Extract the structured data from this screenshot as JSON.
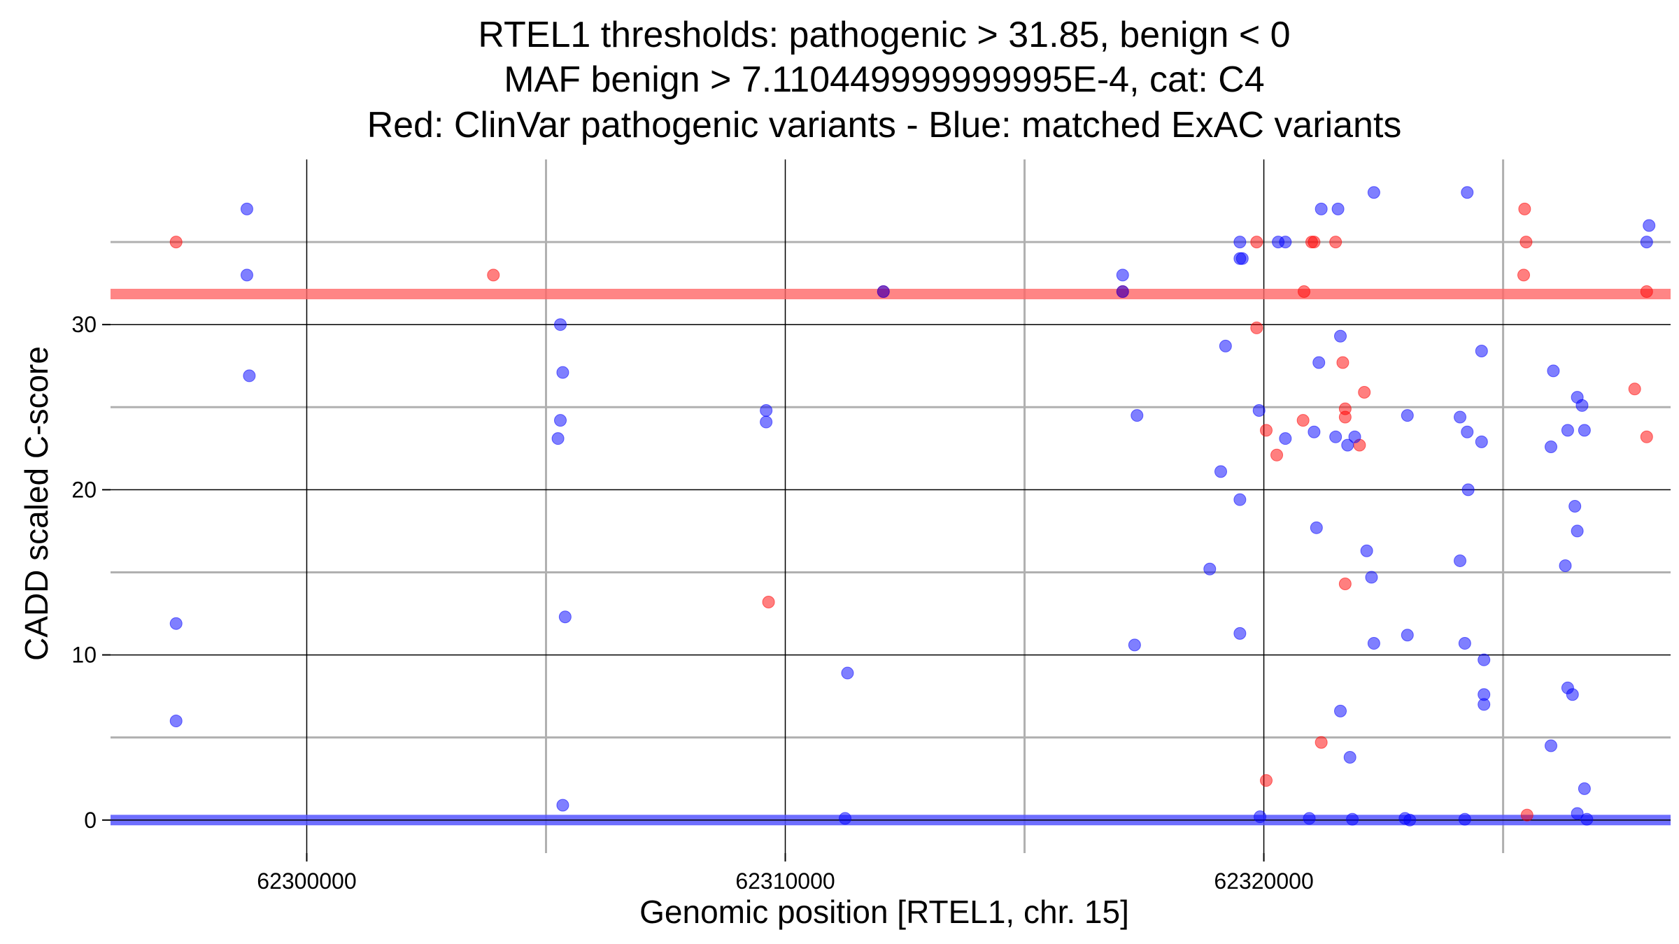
{
  "chart_data": {
    "type": "scatter",
    "title_lines": [
      "RTEL1 thresholds: pathogenic > 31.85, benign < 0",
      "MAF benign > 7.110449999999995E-4, cat: C4",
      "Red: ClinVar pathogenic variants - Blue: matched ExAC variants"
    ],
    "xlabel": "Genomic position [RTEL1, chr. 15]",
    "ylabel": "CADD scaled C-score",
    "xlim": [
      62295900,
      62328500
    ],
    "ylim": [
      -2,
      40
    ],
    "x_ticks": [
      62300000,
      62310000,
      62320000
    ],
    "x_tick_labels": [
      "62300000",
      "62310000",
      "62320000"
    ],
    "x_minor_gridlines": [
      62305000,
      62315000,
      62325000
    ],
    "y_ticks": [
      0,
      10,
      20,
      30
    ],
    "y_tick_labels": [
      "0",
      "10",
      "20",
      "30"
    ],
    "y_minor_gridlines": [
      5,
      15,
      25,
      35
    ],
    "grid": true,
    "thresholds": [
      {
        "name": "pathogenic",
        "value": 31.85,
        "color": "#ff6666"
      },
      {
        "name": "benign",
        "value": 0,
        "color": "#5555ff"
      }
    ],
    "colors": {
      "pathogenic": "#ff0000",
      "benign": "#0000ff"
    },
    "series": [
      {
        "name": "ClinVar pathogenic variants",
        "color": "#ff0000",
        "points": [
          [
            62297270,
            35
          ],
          [
            62303900,
            33
          ],
          [
            62309650,
            13.2
          ],
          [
            62312050,
            32
          ],
          [
            62317050,
            32
          ],
          [
            62319850,
            35
          ],
          [
            62319850,
            29.8
          ],
          [
            62320050,
            23.6
          ],
          [
            62320270,
            22.1
          ],
          [
            62320050,
            2.4
          ],
          [
            62320820,
            24.2
          ],
          [
            62320840,
            32
          ],
          [
            62321000,
            35
          ],
          [
            62321050,
            35
          ],
          [
            62321500,
            35
          ],
          [
            62321650,
            27.7
          ],
          [
            62322100,
            25.9
          ],
          [
            62321200,
            4.7
          ],
          [
            62321700,
            24.9
          ],
          [
            62321700,
            24.4
          ],
          [
            62321700,
            14.3
          ],
          [
            62322000,
            22.7
          ],
          [
            62325450,
            37
          ],
          [
            62325480,
            35
          ],
          [
            62325430,
            33
          ],
          [
            62325500,
            0.3
          ],
          [
            62328000,
            32
          ],
          [
            62327750,
            26.1
          ],
          [
            62328000,
            23.2
          ]
        ]
      },
      {
        "name": "matched ExAC variants",
        "color": "#0000ff",
        "points": [
          [
            62297270,
            11.9
          ],
          [
            62297270,
            6
          ],
          [
            62298750,
            37
          ],
          [
            62298750,
            33
          ],
          [
            62298800,
            26.9
          ],
          [
            62305300,
            30
          ],
          [
            62305350,
            27.1
          ],
          [
            62305300,
            24.2
          ],
          [
            62305250,
            23.1
          ],
          [
            62305400,
            12.3
          ],
          [
            62305350,
            0.9
          ],
          [
            62309600,
            24.8
          ],
          [
            62309600,
            24.1
          ],
          [
            62311300,
            8.9
          ],
          [
            62311250,
            0.1
          ],
          [
            62312050,
            32
          ],
          [
            62317050,
            33
          ],
          [
            62317050,
            32
          ],
          [
            62317350,
            24.5
          ],
          [
            62317300,
            10.6
          ],
          [
            62319500,
            35
          ],
          [
            62319500,
            34
          ],
          [
            62319550,
            34
          ],
          [
            62318870,
            15.2
          ],
          [
            62319200,
            28.7
          ],
          [
            62319100,
            21.1
          ],
          [
            62319500,
            19.4
          ],
          [
            62319500,
            11.3
          ],
          [
            62319900,
            24.8
          ],
          [
            62319920,
            0.2
          ],
          [
            62320300,
            35
          ],
          [
            62320450,
            35
          ],
          [
            62320450,
            23.1
          ],
          [
            62321050,
            23.5
          ],
          [
            62321100,
            17.7
          ],
          [
            62320950,
            0.1
          ],
          [
            62321200,
            37
          ],
          [
            62321550,
            37
          ],
          [
            62321150,
            27.7
          ],
          [
            62321600,
            29.3
          ],
          [
            62321500,
            23.2
          ],
          [
            62321750,
            22.7
          ],
          [
            62321900,
            23.2
          ],
          [
            62321600,
            6.6
          ],
          [
            62321800,
            3.8
          ],
          [
            62321850,
            0.05
          ],
          [
            62322300,
            38
          ],
          [
            62322150,
            16.3
          ],
          [
            62322250,
            14.7
          ],
          [
            62322300,
            10.7
          ],
          [
            62323000,
            24.5
          ],
          [
            62323000,
            11.2
          ],
          [
            62322950,
            0.1
          ],
          [
            62323050,
            0
          ],
          [
            62324250,
            38
          ],
          [
            62324100,
            24.4
          ],
          [
            62324250,
            23.5
          ],
          [
            62324270,
            20
          ],
          [
            62324100,
            15.7
          ],
          [
            62324200,
            10.7
          ],
          [
            62324200,
            0.05
          ],
          [
            62324550,
            28.4
          ],
          [
            62324550,
            22.9
          ],
          [
            62324600,
            9.7
          ],
          [
            62324600,
            7.6
          ],
          [
            62324600,
            7
          ],
          [
            62326050,
            27.2
          ],
          [
            62326000,
            22.6
          ],
          [
            62326000,
            4.5
          ],
          [
            62326350,
            23.6
          ],
          [
            62326300,
            15.4
          ],
          [
            62326350,
            8
          ],
          [
            62326450,
            7.6
          ],
          [
            62326550,
            25.6
          ],
          [
            62326500,
            19
          ],
          [
            62326550,
            17.5
          ],
          [
            62326650,
            25.1
          ],
          [
            62326700,
            23.6
          ],
          [
            62326700,
            1.9
          ],
          [
            62326550,
            0.4
          ],
          [
            62326750,
            0.05
          ],
          [
            62328050,
            36
          ],
          [
            62328000,
            35
          ]
        ]
      }
    ]
  }
}
